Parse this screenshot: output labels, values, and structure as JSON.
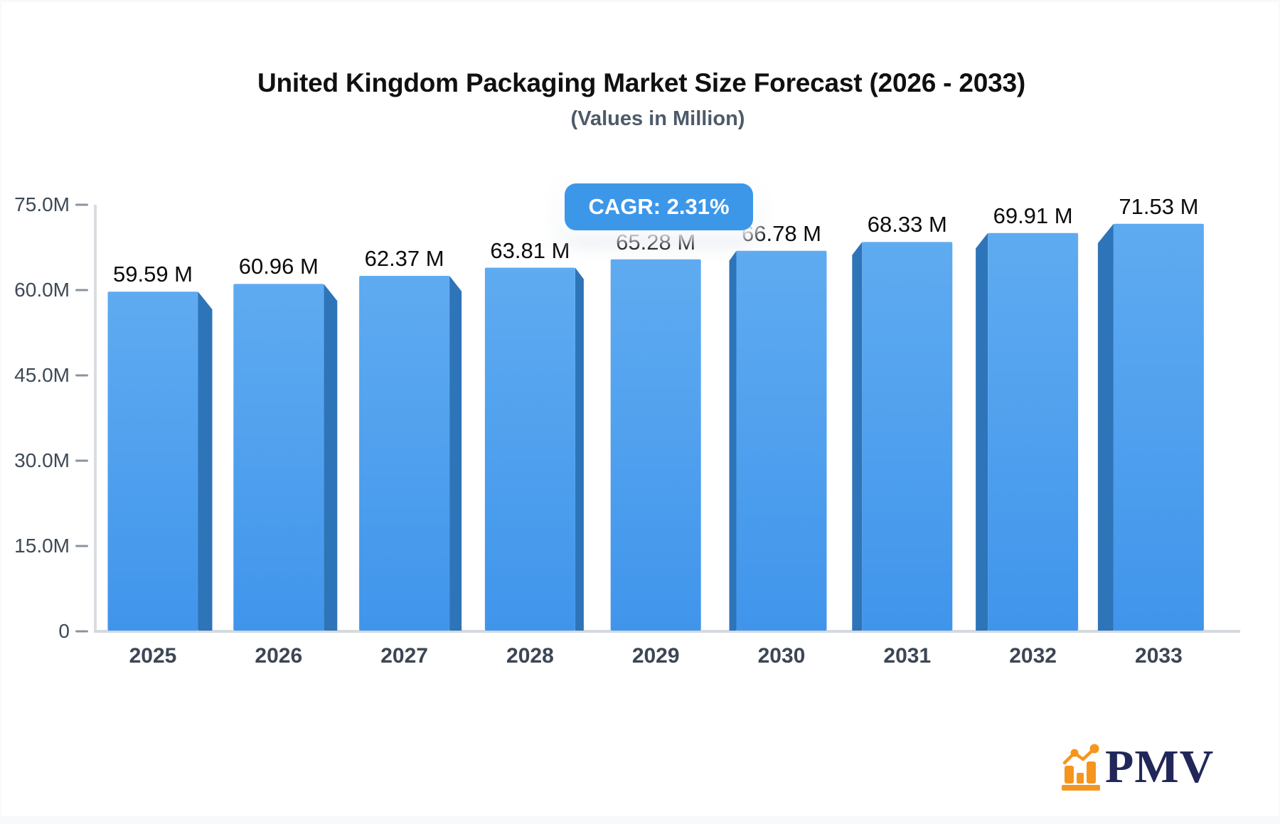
{
  "header": {
    "title": "United Kingdom Packaging Market Size Forecast (2026 - 2033)",
    "subtitle": "(Values in Million)"
  },
  "badge": {
    "label": "CAGR: 2.31%",
    "background_color": "#3D97E9",
    "text_color": "#FFFFFF"
  },
  "chart_data": {
    "type": "bar",
    "title": "United Kingdom Packaging Market Size Forecast (2026 - 2033)",
    "subtitle": "(Values in Million)",
    "categories": [
      "2025",
      "2026",
      "2027",
      "2028",
      "2029",
      "2030",
      "2031",
      "2032",
      "2033"
    ],
    "values": [
      59.59,
      60.96,
      62.37,
      63.81,
      65.28,
      66.78,
      68.33,
      69.91,
      71.53
    ],
    "value_labels": [
      "59.59 M",
      "60.96 M",
      "62.37 M",
      "63.81 M",
      "65.28 M",
      "66.78 M",
      "68.33 M",
      "69.91 M",
      "71.53 M"
    ],
    "unit": "Million",
    "cagr": "CAGR: 2.31%",
    "ylim": [
      0,
      75
    ],
    "yticks": {
      "values": [
        75,
        60,
        45,
        30,
        15,
        0
      ],
      "labels": [
        "75.0M",
        "60.0M",
        "45.0M",
        "30.0M",
        "15.0M",
        "0"
      ]
    },
    "grid": false,
    "legend": "none",
    "colors": {
      "bar_front_top": "#5FABF1",
      "bar_front_bottom": "#4095EB",
      "bar_side": "#2E74B8",
      "axis": "#D7DBDF",
      "tick": "#8C939C",
      "value_label": "#0B0B0B",
      "category_label": "#3C4654"
    }
  },
  "logo": {
    "text": "PMV",
    "icon": "bar-chart-logo-icon",
    "icon_color": "#F6951D",
    "text_color": "#22275A"
  }
}
